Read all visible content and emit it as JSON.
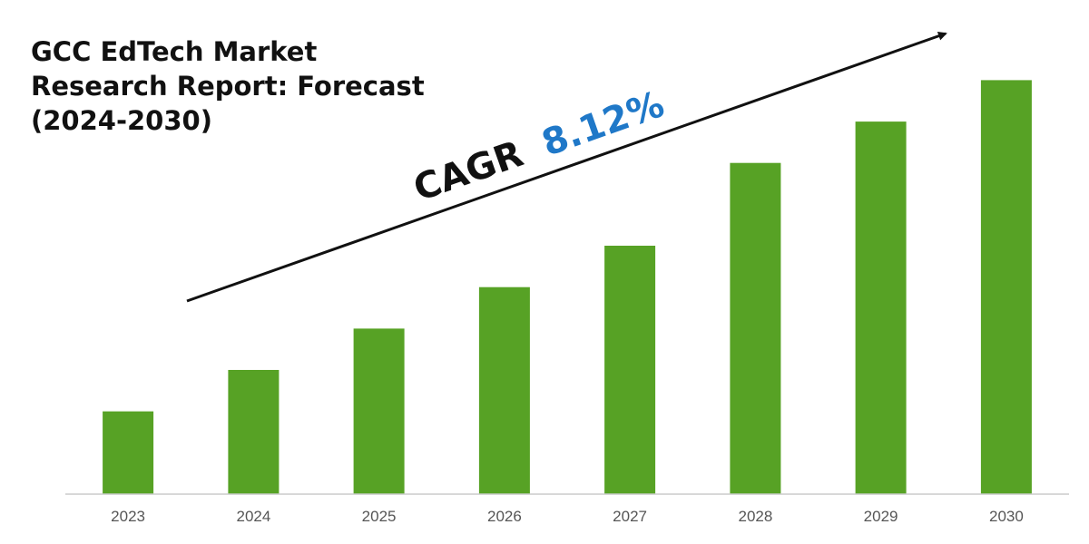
{
  "chart_data": {
    "type": "bar",
    "title": "GCC EdTech Market Research Report: Forecast (2024-2030)",
    "categories": [
      "2023",
      "2024",
      "2025",
      "2026",
      "2027",
      "2028",
      "2029",
      "2030"
    ],
    "values": [
      1.0,
      1.5,
      2.0,
      2.5,
      3.0,
      4.0,
      4.5,
      5.0
    ],
    "ylim": [
      0,
      5.3
    ],
    "xlabel": "",
    "ylabel": "",
    "grid": false,
    "annotation": {
      "prefix": "CAGR",
      "value": "8.12%"
    },
    "colors": {
      "bar": "#57a225",
      "cagr_value": "#1f78c8",
      "text": "#111111",
      "axis": "#cccccc",
      "tick": "#555555"
    }
  }
}
